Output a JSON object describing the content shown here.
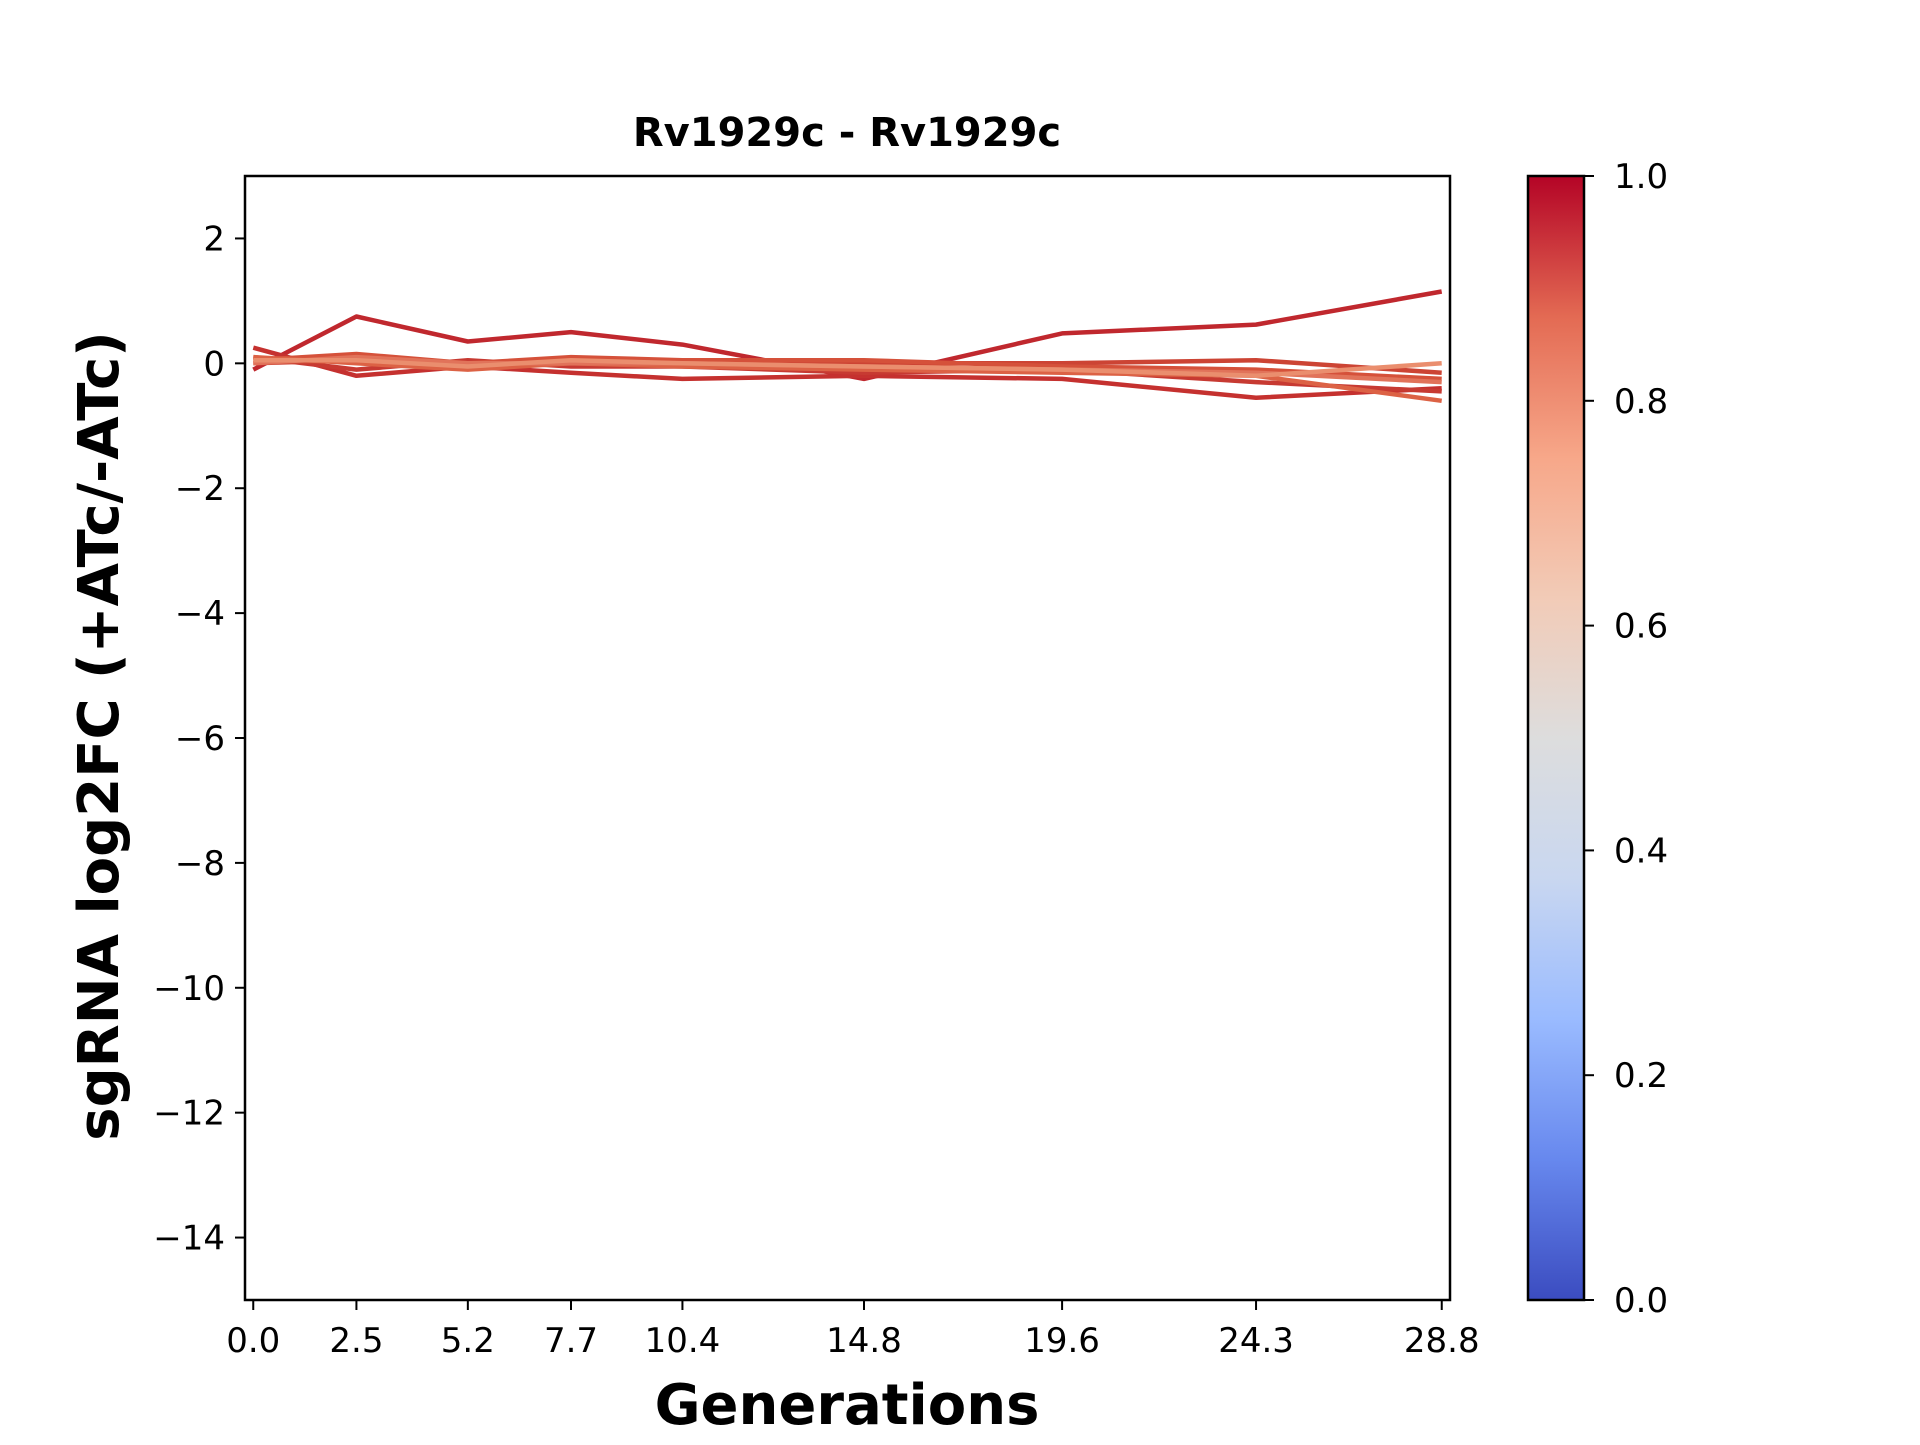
{
  "chart_data": {
    "type": "line",
    "title": "Rv1929c - Rv1929c",
    "xlabel": "Generations",
    "ylabel": "sgRNA log2FC (+ATc/-ATc)",
    "x": [
      0.0,
      2.5,
      5.2,
      7.7,
      10.4,
      14.8,
      19.6,
      24.3,
      28.8
    ],
    "x_tick_labels": [
      "0.0",
      "2.5",
      "5.2",
      "7.7",
      "10.4",
      "14.8",
      "19.6",
      "24.3",
      "28.8"
    ],
    "xlim": [
      -0.2,
      29.0
    ],
    "ylim": [
      -15,
      3
    ],
    "y_ticks": [
      2,
      0,
      -2,
      -4,
      -6,
      -8,
      -10,
      -12,
      -14
    ],
    "y_tick_labels": [
      "2",
      "0",
      "−2",
      "−4",
      "−6",
      "−8",
      "−10",
      "−12",
      "−14"
    ],
    "grid": false,
    "series": [
      {
        "color": "#c0282e",
        "values": [
          -0.1,
          0.75,
          0.35,
          0.5,
          0.3,
          -0.25,
          0.48,
          0.62,
          1.15
        ]
      },
      {
        "color": "#c5312f",
        "values": [
          0.25,
          -0.2,
          -0.05,
          -0.15,
          -0.25,
          -0.2,
          -0.25,
          -0.55,
          -0.4
        ]
      },
      {
        "color": "#c73a32",
        "values": [
          0.1,
          -0.1,
          0.05,
          -0.05,
          -0.05,
          -0.15,
          -0.1,
          -0.3,
          -0.45
        ]
      },
      {
        "color": "#cc4434",
        "values": [
          0.0,
          0.05,
          -0.05,
          0.05,
          0.0,
          0.0,
          0.0,
          0.05,
          -0.15
        ]
      },
      {
        "color": "#d5513a",
        "values": [
          0.05,
          0.15,
          0.0,
          0.1,
          0.05,
          0.05,
          -0.05,
          -0.1,
          -0.25
        ]
      },
      {
        "color": "#dc6245",
        "values": [
          0.1,
          0.0,
          -0.1,
          0.0,
          -0.05,
          -0.1,
          -0.15,
          -0.2,
          -0.6
        ]
      },
      {
        "color": "#e1735a",
        "values": [
          0.0,
          0.1,
          0.0,
          0.0,
          0.0,
          -0.05,
          -0.1,
          -0.15,
          -0.3
        ]
      },
      {
        "color": "#ea8e6e",
        "values": [
          0.05,
          0.05,
          -0.05,
          0.05,
          0.0,
          -0.05,
          -0.1,
          -0.2,
          0.0
        ]
      }
    ],
    "colorbar": {
      "colormap": "coolwarm",
      "range": [
        0.0,
        1.0
      ],
      "ticks": [
        0.0,
        0.2,
        0.4,
        0.6,
        0.8,
        1.0
      ],
      "tick_labels": [
        "0.0",
        "0.2",
        "0.4",
        "0.6",
        "0.8",
        "1.0"
      ],
      "colors": [
        "#3b4cc0",
        "#6788ee",
        "#9abbff",
        "#c9d7f0",
        "#dddddd",
        "#f2cbb7",
        "#f7a789",
        "#e36a53",
        "#b40426"
      ]
    }
  }
}
